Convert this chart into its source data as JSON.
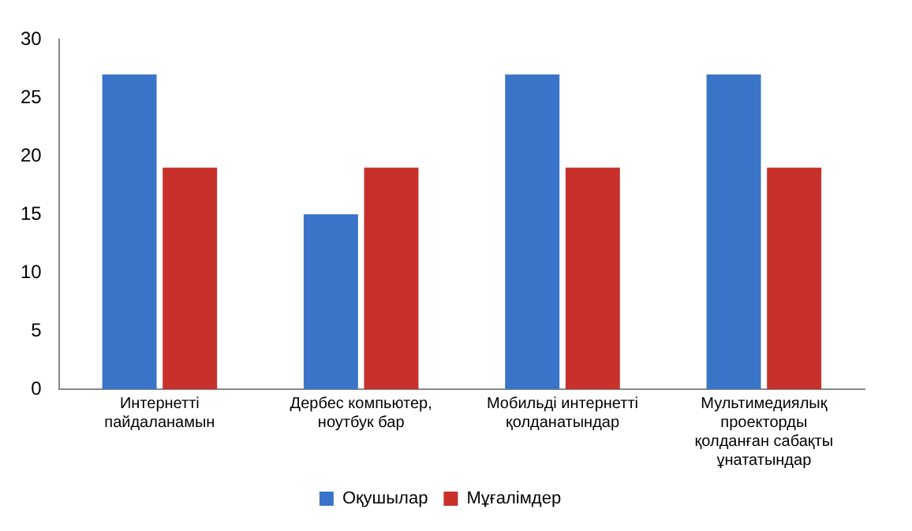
{
  "chart_data": {
    "type": "bar",
    "categories": [
      "Интернетті пайдаланамын",
      "Дербес компьютер, ноутбук бар",
      "Мобильді интернетті қолданатындар",
      "Мультимедиялық проекторды қолданған сабақты ұнататындар"
    ],
    "series": [
      {
        "name": "Оқушылар",
        "color": "#3a74c8",
        "values": [
          27,
          15,
          27,
          27
        ]
      },
      {
        "name": "Мұғалімдер",
        "color": "#c8302c",
        "values": [
          19,
          19,
          19,
          19
        ]
      }
    ],
    "ylim": [
      0,
      30
    ],
    "yticks": [
      0,
      5,
      10,
      15,
      20,
      25,
      30
    ],
    "grid": false,
    "legend": "bottom"
  }
}
